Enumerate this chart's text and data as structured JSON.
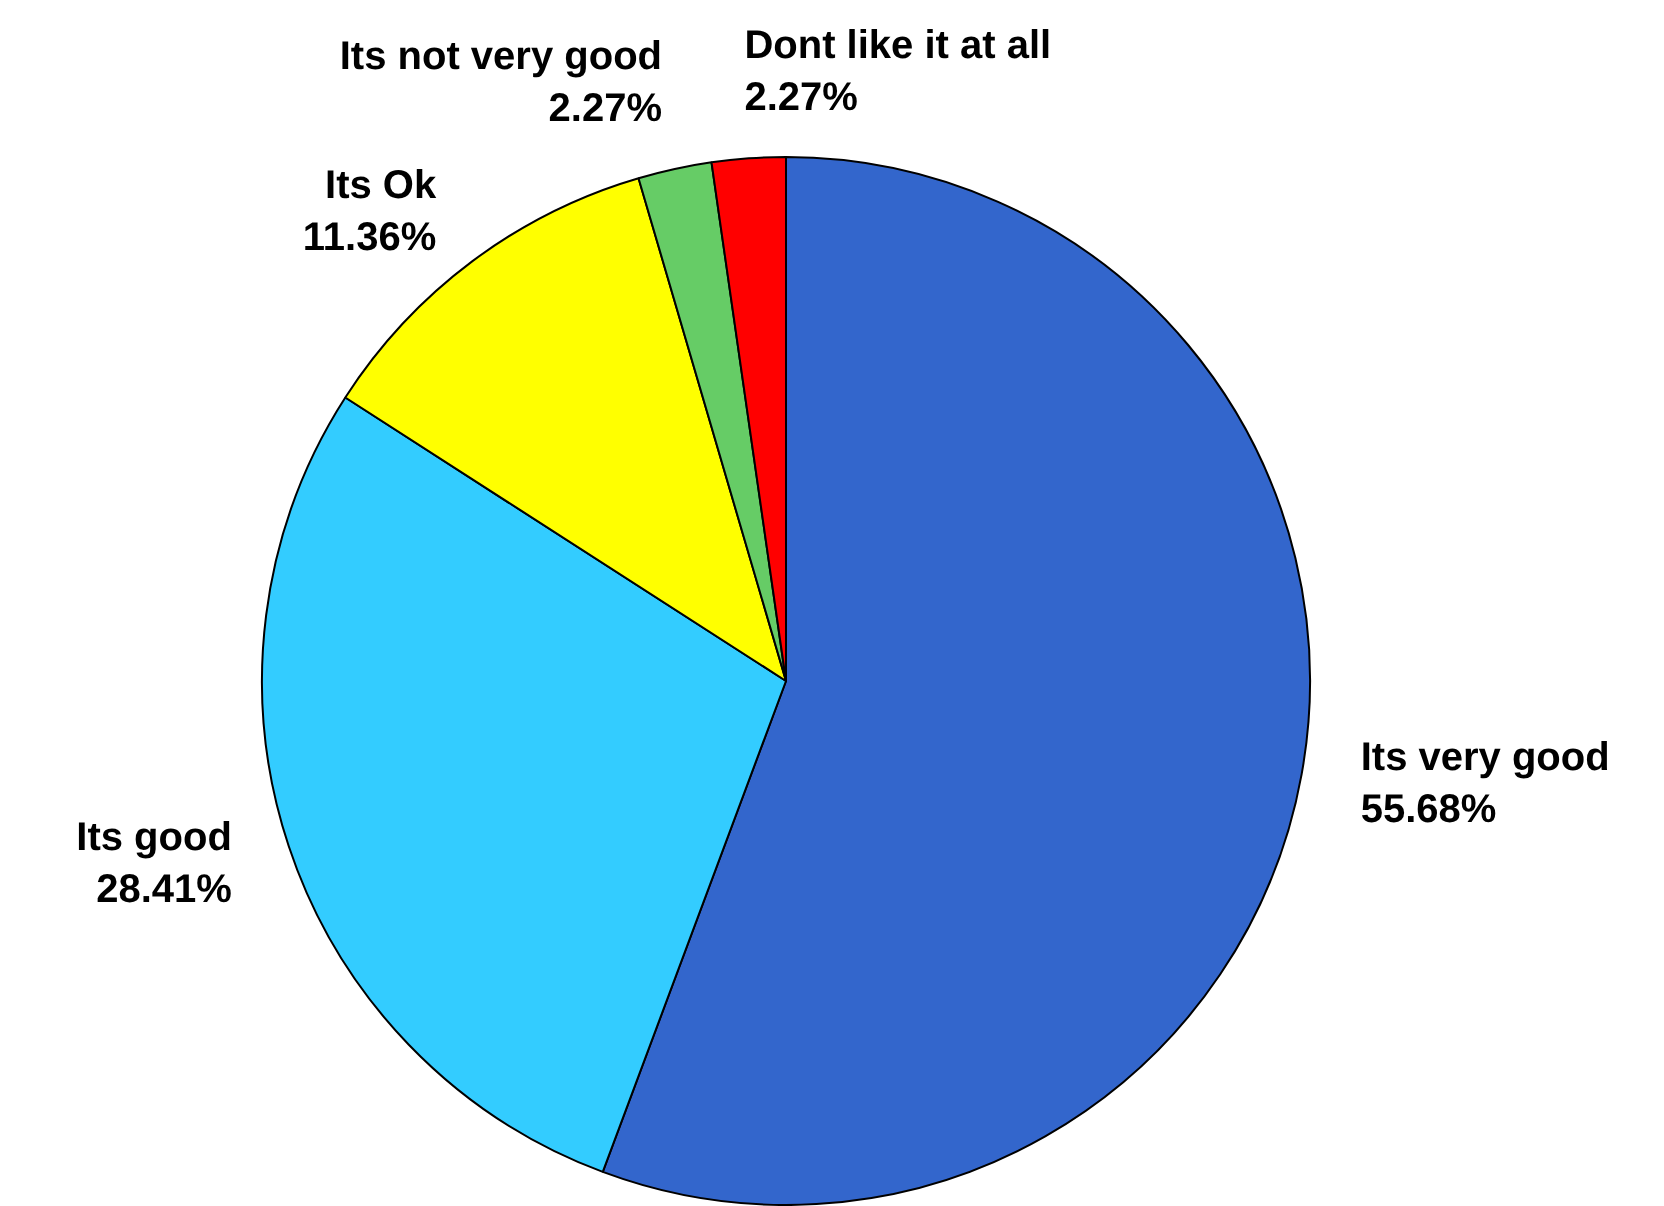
{
  "chart_data": {
    "type": "pie",
    "categories": [
      "Its very good",
      "Its good",
      "Its Ok",
      "Its not very good",
      "Dont like it at all"
    ],
    "values": [
      55.68,
      28.41,
      11.36,
      2.27,
      2.27
    ],
    "value_labels": [
      "55.68%",
      "28.41%",
      "11.36%",
      "2.27%",
      "2.27%"
    ],
    "colors": [
      "#3366cc",
      "#33ccff",
      "#ffff00",
      "#66cc66",
      "#ff0000"
    ],
    "legend": false
  }
}
